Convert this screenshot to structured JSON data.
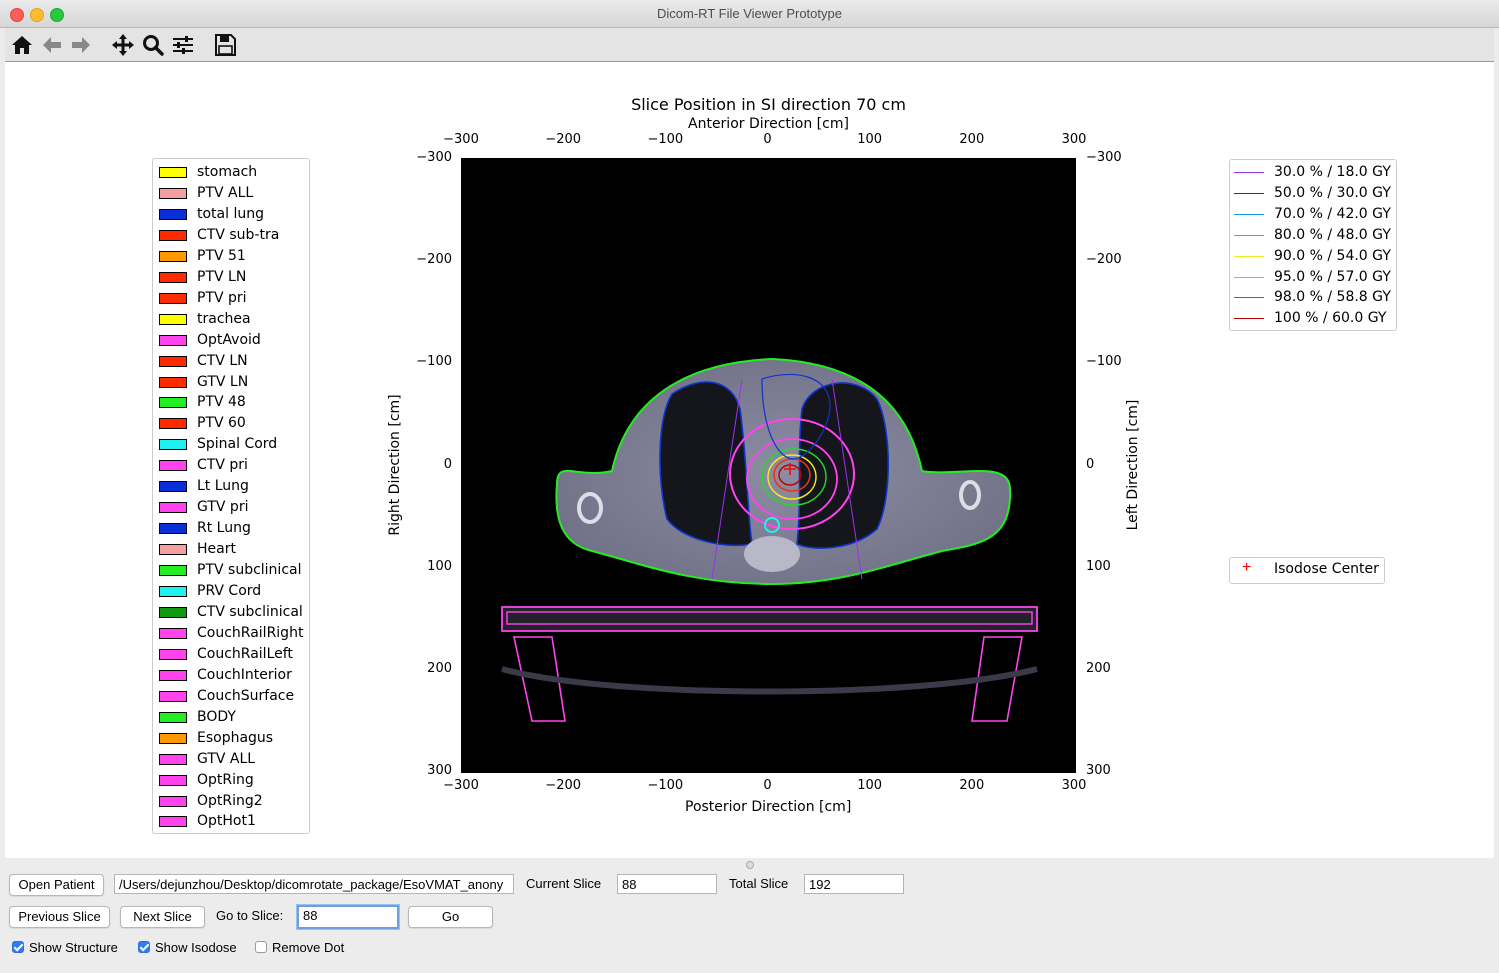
{
  "window": {
    "title": "Dicom-RT File Viewer Prototype"
  },
  "toolbar": {
    "icons": [
      "home-icon",
      "back-arrow-icon",
      "forward-arrow-icon",
      "pan-icon",
      "zoom-icon",
      "configure-subplots-icon",
      "save-icon"
    ]
  },
  "plot": {
    "title": "Slice Position in SI direction 70 cm",
    "top_label": "Anterior Direction [cm]",
    "bottom_label": "Posterior Direction [cm]",
    "left_label": "Right Direction [cm]",
    "right_label": "Left Direction [cm]",
    "x_ticks": [
      "−300",
      "−200",
      "−100",
      "0",
      "100",
      "200",
      "300"
    ],
    "y_ticks": [
      "−300",
      "−200",
      "−100",
      "0",
      "100",
      "200",
      "300"
    ],
    "x_range": [
      -300,
      300
    ],
    "y_range": [
      -300,
      300
    ]
  },
  "structure_legend": [
    {
      "label": "stomach",
      "color": "#ffff00"
    },
    {
      "label": "PTV ALL",
      "color": "#f4a0a0"
    },
    {
      "label": "total lung",
      "color": "#0a2fd6"
    },
    {
      "label": "CTV sub-tra",
      "color": "#ff2a00"
    },
    {
      "label": "PTV 51",
      "color": "#ff9900"
    },
    {
      "label": "PTV LN",
      "color": "#ff2a00"
    },
    {
      "label": "PTV pri",
      "color": "#ff2a00"
    },
    {
      "label": "trachea",
      "color": "#ffff00"
    },
    {
      "label": "OptAvoid",
      "color": "#ff44ee"
    },
    {
      "label": "CTV LN",
      "color": "#ff2a00"
    },
    {
      "label": "GTV LN",
      "color": "#ff2a00"
    },
    {
      "label": "PTV 48",
      "color": "#22ee22"
    },
    {
      "label": "PTV 60",
      "color": "#ff2a00"
    },
    {
      "label": "Spinal Cord",
      "color": "#22f0f0"
    },
    {
      "label": "CTV pri",
      "color": "#ff44ee"
    },
    {
      "label": "Lt Lung",
      "color": "#0a2fd6"
    },
    {
      "label": "GTV pri",
      "color": "#ff44ee"
    },
    {
      "label": "Rt Lung",
      "color": "#0a2fd6"
    },
    {
      "label": "Heart",
      "color": "#f4a0a0"
    },
    {
      "label": "PTV subclinical",
      "color": "#22ee22"
    },
    {
      "label": "PRV Cord",
      "color": "#22f0f0"
    },
    {
      "label": "CTV subclinical",
      "color": "#119911"
    },
    {
      "label": "CouchRailRight",
      "color": "#ff44ee"
    },
    {
      "label": "CouchRailLeft",
      "color": "#ff44ee"
    },
    {
      "label": "CouchInterior",
      "color": "#ff44ee"
    },
    {
      "label": "CouchSurface",
      "color": "#ff44ee"
    },
    {
      "label": "BODY",
      "color": "#22ee22"
    },
    {
      "label": "Esophagus",
      "color": "#ff9900"
    },
    {
      "label": "GTV ALL",
      "color": "#ff44ee"
    },
    {
      "label": "OptRing",
      "color": "#ff44ee"
    },
    {
      "label": "OptRing2",
      "color": "#ff44ee"
    },
    {
      "label": "OptHot1",
      "color": "#ff44ee"
    }
  ],
  "isodose_legend": [
    {
      "label": "30.0 % / 18.0 GY",
      "color": "#9933ee"
    },
    {
      "label": "50.0 % / 30.0 GY",
      "color": "#1133cc"
    },
    {
      "label": "70.0 % / 42.0 GY",
      "color": "#1199ee"
    },
    {
      "label": "80.0 % / 48.0 GY",
      "color": "#22dd22"
    },
    {
      "label": "90.0 % / 54.0 GY",
      "color": "#eeee22"
    },
    {
      "label": "95.0 % / 57.0 GY",
      "color": "#eeaa00"
    },
    {
      "label": "98.0 % / 58.8 GY",
      "color": "#ee3311"
    },
    {
      "label": "100 % / 60.0 GY",
      "color": "#bb0000"
    }
  ],
  "center_legend": {
    "marker": "+",
    "label": "Isodose Center",
    "color": "#ff0000"
  },
  "controls": {
    "open_patient": "Open Patient",
    "path": "/Users/dejunzhou/Desktop/dicomrotate_package/EsoVMAT_anony",
    "current_slice_label": "Current Slice",
    "current_slice": "88",
    "total_slice_label": "Total Slice",
    "total_slice": "192",
    "previous_slice": "Previous Slice",
    "next_slice": "Next Slice",
    "goto_label": "Go to Slice:",
    "goto_value": "88",
    "go": "Go",
    "show_structure": "Show Structure",
    "show_structure_checked": true,
    "show_isodose": "Show Isodose",
    "show_isodose_checked": true,
    "remove_dot": "Remove Dot",
    "remove_dot_checked": false
  }
}
